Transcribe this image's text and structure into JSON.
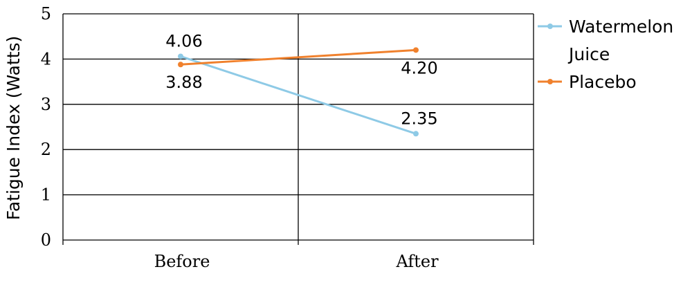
{
  "chart_data": {
    "type": "line",
    "title": "",
    "xlabel": "",
    "ylabel": "Fatigue Index (Watts)",
    "categories": [
      "Before",
      "After"
    ],
    "ylim": [
      0,
      5
    ],
    "yticks": [
      "0",
      "1",
      "2",
      "3",
      "4",
      "5"
    ],
    "grid": true,
    "legend_position": "right",
    "series": [
      {
        "name": "Watermelon Juice",
        "name_lines": [
          "Watermelon",
          "Juice"
        ],
        "color": "#8ecae6",
        "values": [
          4.06,
          2.35
        ],
        "labels": [
          "4.06",
          "2.35"
        ],
        "label_positions": [
          "above",
          "above"
        ]
      },
      {
        "name": "Placebo",
        "name_lines": [
          "Placebo"
        ],
        "color": "#f0812d",
        "values": [
          3.88,
          4.2
        ],
        "labels": [
          "3.88",
          "4.20"
        ],
        "label_positions": [
          "below",
          "below"
        ]
      }
    ]
  }
}
